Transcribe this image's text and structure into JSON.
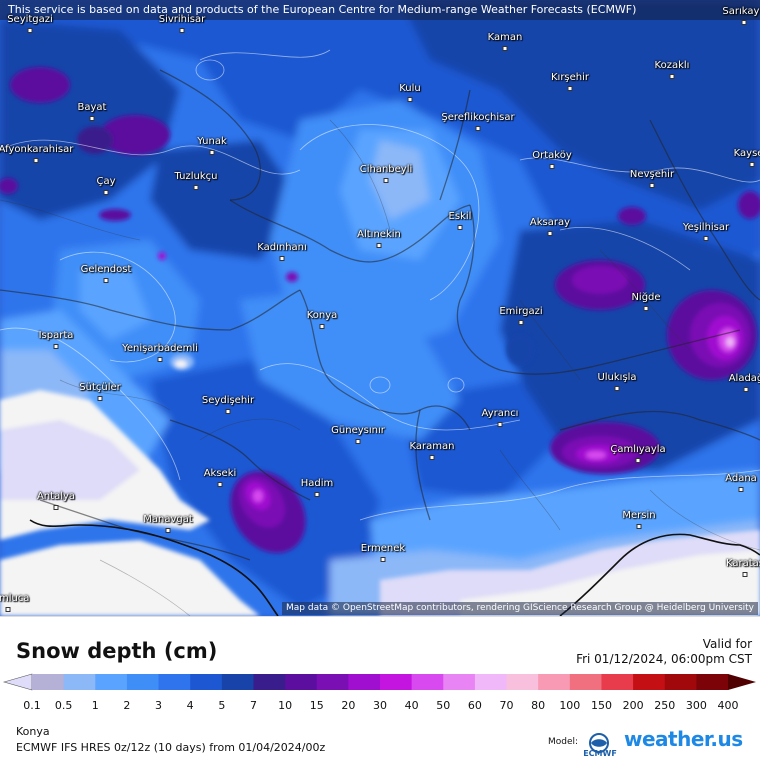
{
  "source_notice": "This service is based on data and products of the European Centre for Medium-range Weather Forecasts (ECMWF)",
  "attribution": "Map data © OpenStreetMap contributors, rendering GIScience Research Group @ Heidelberg University",
  "title": "Snow depth (cm)",
  "valid_label": "Valid for",
  "valid_time": "Fri 01/12/2024, 06:00pm CST",
  "location": "Konya",
  "model_run": "ECMWF IFS HRES 0z/12z (10 days) from 01/04/2024/00z",
  "model_label": "Model:",
  "model_logo_text": "ECMWF",
  "brand_name": "weather.us",
  "scale": {
    "ticks": [
      "0.1",
      "0.5",
      "1",
      "2",
      "3",
      "4",
      "5",
      "7",
      "10",
      "15",
      "20",
      "30",
      "40",
      "50",
      "60",
      "70",
      "80",
      "100",
      "150",
      "200",
      "250",
      "300",
      "400"
    ],
    "colors": [
      "#dedcf8",
      "#b4b0d6",
      "#8cb8f8",
      "#5aa4ff",
      "#3f8ef8",
      "#2f74ec",
      "#1d58d2",
      "#1844aa",
      "#3a1d8c",
      "#5c0f9e",
      "#7a0fb4",
      "#a00ed0",
      "#c414e0",
      "#d84af0",
      "#e884f4",
      "#f0b8f8",
      "#f8c0dc",
      "#f89ab4",
      "#f07080",
      "#e83c4c",
      "#c41014",
      "#a0080c",
      "#7c0408",
      "#500000"
    ]
  },
  "cities": [
    {
      "name": "Seyitgazi"
    },
    {
      "name": "Sivrihisar"
    },
    {
      "name": "Kaman"
    },
    {
      "name": "Sarıkaya"
    },
    {
      "name": "Kozaklı"
    },
    {
      "name": "Kırşehir"
    },
    {
      "name": "Kulu"
    },
    {
      "name": "Bayat"
    },
    {
      "name": "Şereflikoçhisar"
    },
    {
      "name": "Afyonkarahisar"
    },
    {
      "name": "Yunak"
    },
    {
      "name": "Ortaköy"
    },
    {
      "name": "Kayseri"
    },
    {
      "name": "Cihanbeyli"
    },
    {
      "name": "Nevşehir"
    },
    {
      "name": "Çay"
    },
    {
      "name": "Tuzlukçu"
    },
    {
      "name": "Eskil"
    },
    {
      "name": "Aksaray"
    },
    {
      "name": "Altınekin"
    },
    {
      "name": "Yeşilhisar"
    },
    {
      "name": "Kadınhanı"
    },
    {
      "name": "Gelendost"
    },
    {
      "name": "Niğde"
    },
    {
      "name": "Konya"
    },
    {
      "name": "Emirgazi"
    },
    {
      "name": "Isparta"
    },
    {
      "name": "Yenişarbademli"
    },
    {
      "name": "Ulukışla"
    },
    {
      "name": "Aladağ"
    },
    {
      "name": "Sütçüler"
    },
    {
      "name": "Seydişehir"
    },
    {
      "name": "Ayrancı"
    },
    {
      "name": "Güneysınır"
    },
    {
      "name": "Çamlıyayla"
    },
    {
      "name": "Karaman"
    },
    {
      "name": "Akseki"
    },
    {
      "name": "Adana"
    },
    {
      "name": "Hadim"
    },
    {
      "name": "Antalya"
    },
    {
      "name": "Manavgat"
    },
    {
      "name": "Mersin"
    },
    {
      "name": "Ermenek"
    },
    {
      "name": "Karataş"
    },
    {
      "name": "Kumluca"
    }
  ]
}
